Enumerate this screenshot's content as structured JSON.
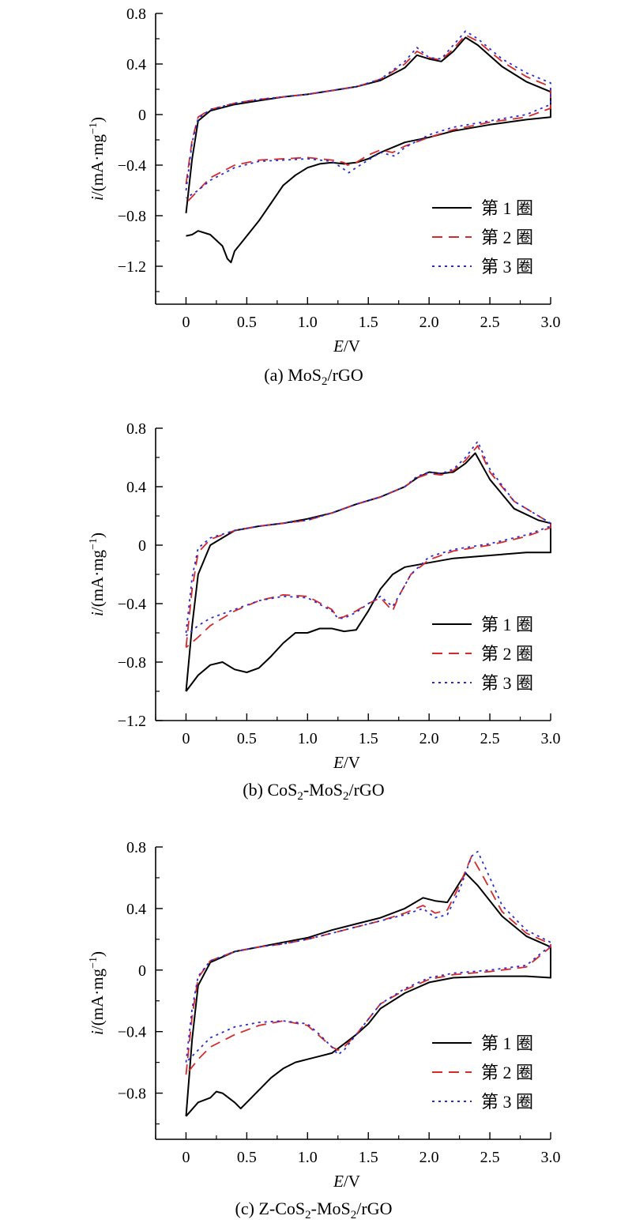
{
  "colors": {
    "cycle1": "#000000",
    "cycle2": "#d42a2a",
    "cycle3": "#2b2bd6",
    "axis": "#000000"
  },
  "chart_data": [
    {
      "type": "line",
      "caption": {
        "prefix": "(a) MoS",
        "sub": "2",
        "suffix": "/rGO"
      },
      "xlabel": {
        "italic": "E",
        "rest": "/V"
      },
      "ylabel": {
        "italic": "i",
        "rest": "/(mA·mg",
        "sup": "−1",
        "close": ")"
      },
      "xlim": [
        -0.25,
        3.0
      ],
      "ylim": [
        -1.5,
        0.8
      ],
      "xticks": [
        0,
        0.5,
        1.0,
        1.5,
        2.0,
        2.5,
        3.0
      ],
      "xtick_labels": [
        "0",
        "0.5",
        "1.0",
        "1.5",
        "2.0",
        "2.5",
        "3.0"
      ],
      "yticks": [
        0.8,
        0.4,
        0,
        -0.4,
        -0.8,
        -1.2
      ],
      "ytick_labels": [
        "0.8",
        "0.4",
        "0",
        "−0.4",
        "−0.8",
        "−1.2"
      ],
      "legend_position": "lower-right",
      "series": [
        {
          "name": "第 1 圈",
          "style": "solid",
          "x": [
            0.0,
            0.05,
            0.1,
            0.2,
            0.4,
            0.6,
            0.8,
            1.0,
            1.2,
            1.4,
            1.6,
            1.8,
            1.9,
            2.0,
            2.1,
            2.2,
            2.3,
            2.4,
            2.6,
            2.8,
            3.0,
            3.0,
            2.8,
            2.5,
            2.2,
            2.0,
            1.8,
            1.6,
            1.5,
            1.4,
            1.3,
            1.2,
            1.1,
            1.0,
            0.9,
            0.8,
            0.7,
            0.6,
            0.5,
            0.45,
            0.4,
            0.37,
            0.34,
            0.3,
            0.2,
            0.1,
            0.05,
            0.0
          ],
          "y": [
            -0.78,
            -0.35,
            -0.05,
            0.03,
            0.08,
            0.11,
            0.14,
            0.16,
            0.19,
            0.22,
            0.27,
            0.37,
            0.47,
            0.44,
            0.42,
            0.5,
            0.61,
            0.55,
            0.38,
            0.26,
            0.18,
            -0.02,
            -0.04,
            -0.08,
            -0.13,
            -0.18,
            -0.22,
            -0.3,
            -0.35,
            -0.38,
            -0.39,
            -0.38,
            -0.39,
            -0.42,
            -0.48,
            -0.56,
            -0.7,
            -0.84,
            -0.96,
            -1.02,
            -1.08,
            -1.17,
            -1.14,
            -1.04,
            -0.95,
            -0.92,
            -0.95,
            -0.96
          ]
        },
        {
          "name": "第 2 圈",
          "style": "dashed",
          "x": [
            0.0,
            0.05,
            0.1,
            0.2,
            0.4,
            0.6,
            0.8,
            1.0,
            1.2,
            1.4,
            1.6,
            1.8,
            1.9,
            2.0,
            2.1,
            2.2,
            2.3,
            2.4,
            2.6,
            2.8,
            3.0,
            3.0,
            2.8,
            2.5,
            2.2,
            2.0,
            1.8,
            1.7,
            1.6,
            1.5,
            1.4,
            1.33,
            1.3,
            1.2,
            1.0,
            0.8,
            0.6,
            0.4,
            0.2,
            0.1,
            0.0
          ],
          "y": [
            -0.55,
            -0.2,
            -0.02,
            0.04,
            0.09,
            0.12,
            0.14,
            0.16,
            0.19,
            0.22,
            0.28,
            0.4,
            0.5,
            0.45,
            0.43,
            0.52,
            0.63,
            0.58,
            0.42,
            0.3,
            0.22,
            0.05,
            -0.02,
            -0.06,
            -0.12,
            -0.18,
            -0.25,
            -0.3,
            -0.28,
            -0.32,
            -0.38,
            -0.4,
            -0.38,
            -0.36,
            -0.34,
            -0.35,
            -0.36,
            -0.4,
            -0.5,
            -0.6,
            -0.7
          ]
        },
        {
          "name": "第 3 圈",
          "style": "dotted",
          "x": [
            0.0,
            0.05,
            0.1,
            0.2,
            0.4,
            0.6,
            0.8,
            1.0,
            1.2,
            1.4,
            1.6,
            1.8,
            1.9,
            2.0,
            2.1,
            2.2,
            2.3,
            2.4,
            2.6,
            2.8,
            3.0,
            3.0,
            2.8,
            2.5,
            2.2,
            2.0,
            1.8,
            1.72,
            1.6,
            1.5,
            1.4,
            1.34,
            1.28,
            1.2,
            1.0,
            0.8,
            0.6,
            0.4,
            0.2,
            0.1,
            0.0
          ],
          "y": [
            -0.6,
            -0.22,
            -0.03,
            0.04,
            0.09,
            0.12,
            0.14,
            0.16,
            0.19,
            0.22,
            0.28,
            0.42,
            0.53,
            0.45,
            0.44,
            0.55,
            0.66,
            0.6,
            0.44,
            0.33,
            0.25,
            0.08,
            0.0,
            -0.05,
            -0.1,
            -0.16,
            -0.26,
            -0.33,
            -0.3,
            -0.36,
            -0.42,
            -0.46,
            -0.42,
            -0.37,
            -0.35,
            -0.36,
            -0.37,
            -0.42,
            -0.52,
            -0.6,
            -0.66
          ]
        }
      ]
    },
    {
      "type": "line",
      "caption": {
        "prefix": "(b) CoS",
        "sub": "2",
        "mid": "-MoS",
        "sub2": "2",
        "suffix": "/rGO"
      },
      "xlabel": {
        "italic": "E",
        "rest": "/V"
      },
      "ylabel": {
        "italic": "i",
        "rest": "/(mA·mg",
        "sup": "−1",
        "close": ")"
      },
      "xlim": [
        -0.25,
        3.0
      ],
      "ylim": [
        -1.2,
        0.8
      ],
      "xticks": [
        0,
        0.5,
        1.0,
        1.5,
        2.0,
        2.5,
        3.0
      ],
      "xtick_labels": [
        "0",
        "0.5",
        "1.0",
        "1.5",
        "2.0",
        "2.5",
        "3.0"
      ],
      "yticks": [
        0.8,
        0.4,
        0,
        -0.4,
        -0.8,
        -1.2
      ],
      "ytick_labels": [
        "0.8",
        "0.4",
        "0",
        "−0.4",
        "−0.8",
        "−1.2"
      ],
      "legend_position": "lower-right",
      "series": [
        {
          "name": "第 1 圈",
          "style": "solid",
          "x": [
            0.0,
            0.05,
            0.1,
            0.2,
            0.4,
            0.6,
            0.8,
            1.0,
            1.2,
            1.4,
            1.6,
            1.8,
            1.9,
            2.0,
            2.1,
            2.2,
            2.3,
            2.38,
            2.5,
            2.7,
            2.9,
            3.0,
            3.0,
            2.8,
            2.5,
            2.2,
            2.0,
            1.8,
            1.7,
            1.6,
            1.5,
            1.4,
            1.3,
            1.2,
            1.1,
            1.0,
            0.9,
            0.8,
            0.7,
            0.6,
            0.5,
            0.4,
            0.3,
            0.2,
            0.1,
            0.0
          ],
          "y": [
            -1.0,
            -0.55,
            -0.2,
            0.0,
            0.1,
            0.13,
            0.15,
            0.18,
            0.22,
            0.28,
            0.33,
            0.4,
            0.46,
            0.5,
            0.49,
            0.5,
            0.56,
            0.63,
            0.45,
            0.25,
            0.17,
            0.15,
            -0.05,
            -0.05,
            -0.07,
            -0.09,
            -0.12,
            -0.15,
            -0.2,
            -0.3,
            -0.45,
            -0.58,
            -0.59,
            -0.57,
            -0.57,
            -0.6,
            -0.6,
            -0.67,
            -0.76,
            -0.84,
            -0.87,
            -0.85,
            -0.8,
            -0.82,
            -0.89,
            -1.0
          ]
        },
        {
          "name": "第 2 圈",
          "style": "dashed",
          "x": [
            0.0,
            0.05,
            0.1,
            0.2,
            0.4,
            0.6,
            0.8,
            1.0,
            1.2,
            1.4,
            1.6,
            1.8,
            1.9,
            2.0,
            2.1,
            2.2,
            2.3,
            2.4,
            2.5,
            2.7,
            2.9,
            3.0,
            3.0,
            2.8,
            2.5,
            2.2,
            2.0,
            1.85,
            1.75,
            1.7,
            1.6,
            1.5,
            1.4,
            1.3,
            1.25,
            1.2,
            1.0,
            0.8,
            0.6,
            0.4,
            0.2,
            0.1,
            0.0
          ],
          "y": [
            -0.7,
            -0.3,
            -0.05,
            0.04,
            0.1,
            0.13,
            0.15,
            0.17,
            0.22,
            0.28,
            0.33,
            0.4,
            0.46,
            0.49,
            0.48,
            0.51,
            0.58,
            0.68,
            0.5,
            0.3,
            0.2,
            0.15,
            0.12,
            0.06,
            0.0,
            -0.04,
            -0.1,
            -0.2,
            -0.35,
            -0.45,
            -0.36,
            -0.4,
            -0.45,
            -0.49,
            -0.5,
            -0.44,
            -0.35,
            -0.34,
            -0.38,
            -0.45,
            -0.55,
            -0.63,
            -0.7
          ]
        },
        {
          "name": "第 3 圈",
          "style": "dotted",
          "x": [
            0.0,
            0.05,
            0.1,
            0.2,
            0.4,
            0.6,
            0.8,
            1.0,
            1.2,
            1.4,
            1.6,
            1.8,
            1.9,
            2.0,
            2.1,
            2.2,
            2.3,
            2.4,
            2.5,
            2.7,
            2.9,
            3.0,
            3.0,
            2.8,
            2.5,
            2.2,
            2.0,
            1.85,
            1.75,
            1.7,
            1.6,
            1.5,
            1.4,
            1.3,
            1.25,
            1.2,
            1.0,
            0.8,
            0.6,
            0.4,
            0.2,
            0.1,
            0.0
          ],
          "y": [
            -0.6,
            -0.22,
            -0.02,
            0.05,
            0.1,
            0.13,
            0.15,
            0.17,
            0.22,
            0.28,
            0.33,
            0.4,
            0.47,
            0.5,
            0.49,
            0.52,
            0.6,
            0.71,
            0.52,
            0.3,
            0.2,
            0.15,
            0.13,
            0.07,
            0.01,
            -0.03,
            -0.08,
            -0.2,
            -0.35,
            -0.42,
            -0.35,
            -0.4,
            -0.46,
            -0.5,
            -0.5,
            -0.45,
            -0.36,
            -0.35,
            -0.38,
            -0.44,
            -0.5,
            -0.55,
            -0.62
          ]
        }
      ]
    },
    {
      "type": "line",
      "caption": {
        "prefix": "(c) Z-CoS",
        "sub": "2",
        "mid": "-MoS",
        "sub2": "2",
        "suffix": "/rGO"
      },
      "xlabel": {
        "italic": "E",
        "rest": "/V"
      },
      "ylabel": {
        "italic": "i",
        "rest": "/(mA·mg",
        "sup": "−1",
        "close": ")"
      },
      "xlim": [
        -0.25,
        3.0
      ],
      "ylim": [
        -1.1,
        0.8
      ],
      "xticks": [
        0,
        0.5,
        1.0,
        1.5,
        2.0,
        2.5,
        3.0
      ],
      "xtick_labels": [
        "0",
        "0.5",
        "1.0",
        "1.5",
        "2.0",
        "2.5",
        "3.0"
      ],
      "yticks": [
        0.8,
        0.4,
        0,
        -0.4,
        -0.8
      ],
      "ytick_labels": [
        "0.8",
        "0.4",
        "0",
        "−0.4",
        "−0.8"
      ],
      "legend_position": "lower-right",
      "series": [
        {
          "name": "第 1 圈",
          "style": "solid",
          "x": [
            0.0,
            0.05,
            0.1,
            0.2,
            0.4,
            0.6,
            0.8,
            1.0,
            1.2,
            1.4,
            1.6,
            1.8,
            1.95,
            2.05,
            2.15,
            2.3,
            2.4,
            2.6,
            2.8,
            3.0,
            3.0,
            2.8,
            2.5,
            2.2,
            2.0,
            1.8,
            1.6,
            1.5,
            1.4,
            1.3,
            1.2,
            1.1,
            1.0,
            0.9,
            0.8,
            0.7,
            0.6,
            0.5,
            0.45,
            0.4,
            0.3,
            0.25,
            0.2,
            0.1,
            0.0
          ],
          "y": [
            -0.95,
            -0.45,
            -0.1,
            0.05,
            0.12,
            0.15,
            0.18,
            0.21,
            0.26,
            0.3,
            0.34,
            0.4,
            0.47,
            0.45,
            0.44,
            0.63,
            0.55,
            0.35,
            0.22,
            0.15,
            -0.05,
            -0.04,
            -0.04,
            -0.05,
            -0.08,
            -0.15,
            -0.25,
            -0.35,
            -0.42,
            -0.48,
            -0.54,
            -0.56,
            -0.58,
            -0.6,
            -0.64,
            -0.7,
            -0.78,
            -0.86,
            -0.9,
            -0.86,
            -0.8,
            -0.79,
            -0.83,
            -0.86,
            -0.95
          ]
        },
        {
          "name": "第 2 圈",
          "style": "dashed",
          "x": [
            0.0,
            0.05,
            0.1,
            0.2,
            0.4,
            0.6,
            0.8,
            1.0,
            1.2,
            1.4,
            1.6,
            1.8,
            1.95,
            2.05,
            2.15,
            2.25,
            2.35,
            2.45,
            2.6,
            2.8,
            3.0,
            3.0,
            2.8,
            2.5,
            2.2,
            2.0,
            1.8,
            1.6,
            1.5,
            1.4,
            1.3,
            1.25,
            1.2,
            1.1,
            1.0,
            0.8,
            0.6,
            0.4,
            0.2,
            0.1,
            0.0
          ],
          "y": [
            -0.68,
            -0.3,
            -0.05,
            0.06,
            0.12,
            0.15,
            0.17,
            0.2,
            0.24,
            0.28,
            0.32,
            0.37,
            0.42,
            0.37,
            0.39,
            0.55,
            0.74,
            0.6,
            0.38,
            0.24,
            0.17,
            0.15,
            0.02,
            -0.01,
            -0.03,
            -0.06,
            -0.13,
            -0.22,
            -0.32,
            -0.42,
            -0.5,
            -0.52,
            -0.5,
            -0.43,
            -0.36,
            -0.33,
            -0.36,
            -0.42,
            -0.5,
            -0.58,
            -0.68
          ]
        },
        {
          "name": "第 3 圈",
          "style": "dotted",
          "x": [
            0.0,
            0.05,
            0.1,
            0.2,
            0.4,
            0.6,
            0.8,
            1.0,
            1.2,
            1.4,
            1.6,
            1.8,
            1.95,
            2.05,
            2.15,
            2.25,
            2.35,
            2.4,
            2.5,
            2.6,
            2.8,
            3.0,
            3.0,
            2.8,
            2.5,
            2.2,
            2.0,
            1.8,
            1.6,
            1.5,
            1.4,
            1.3,
            1.25,
            1.2,
            1.1,
            1.0,
            0.8,
            0.6,
            0.4,
            0.2,
            0.1,
            0.0
          ],
          "y": [
            -0.6,
            -0.25,
            -0.04,
            0.06,
            0.12,
            0.15,
            0.17,
            0.2,
            0.24,
            0.28,
            0.32,
            0.36,
            0.4,
            0.34,
            0.36,
            0.52,
            0.74,
            0.77,
            0.6,
            0.42,
            0.26,
            0.18,
            0.16,
            0.03,
            0.0,
            -0.02,
            -0.05,
            -0.12,
            -0.22,
            -0.32,
            -0.42,
            -0.52,
            -0.55,
            -0.5,
            -0.42,
            -0.35,
            -0.33,
            -0.34,
            -0.37,
            -0.44,
            -0.52,
            -0.6
          ]
        }
      ]
    }
  ]
}
